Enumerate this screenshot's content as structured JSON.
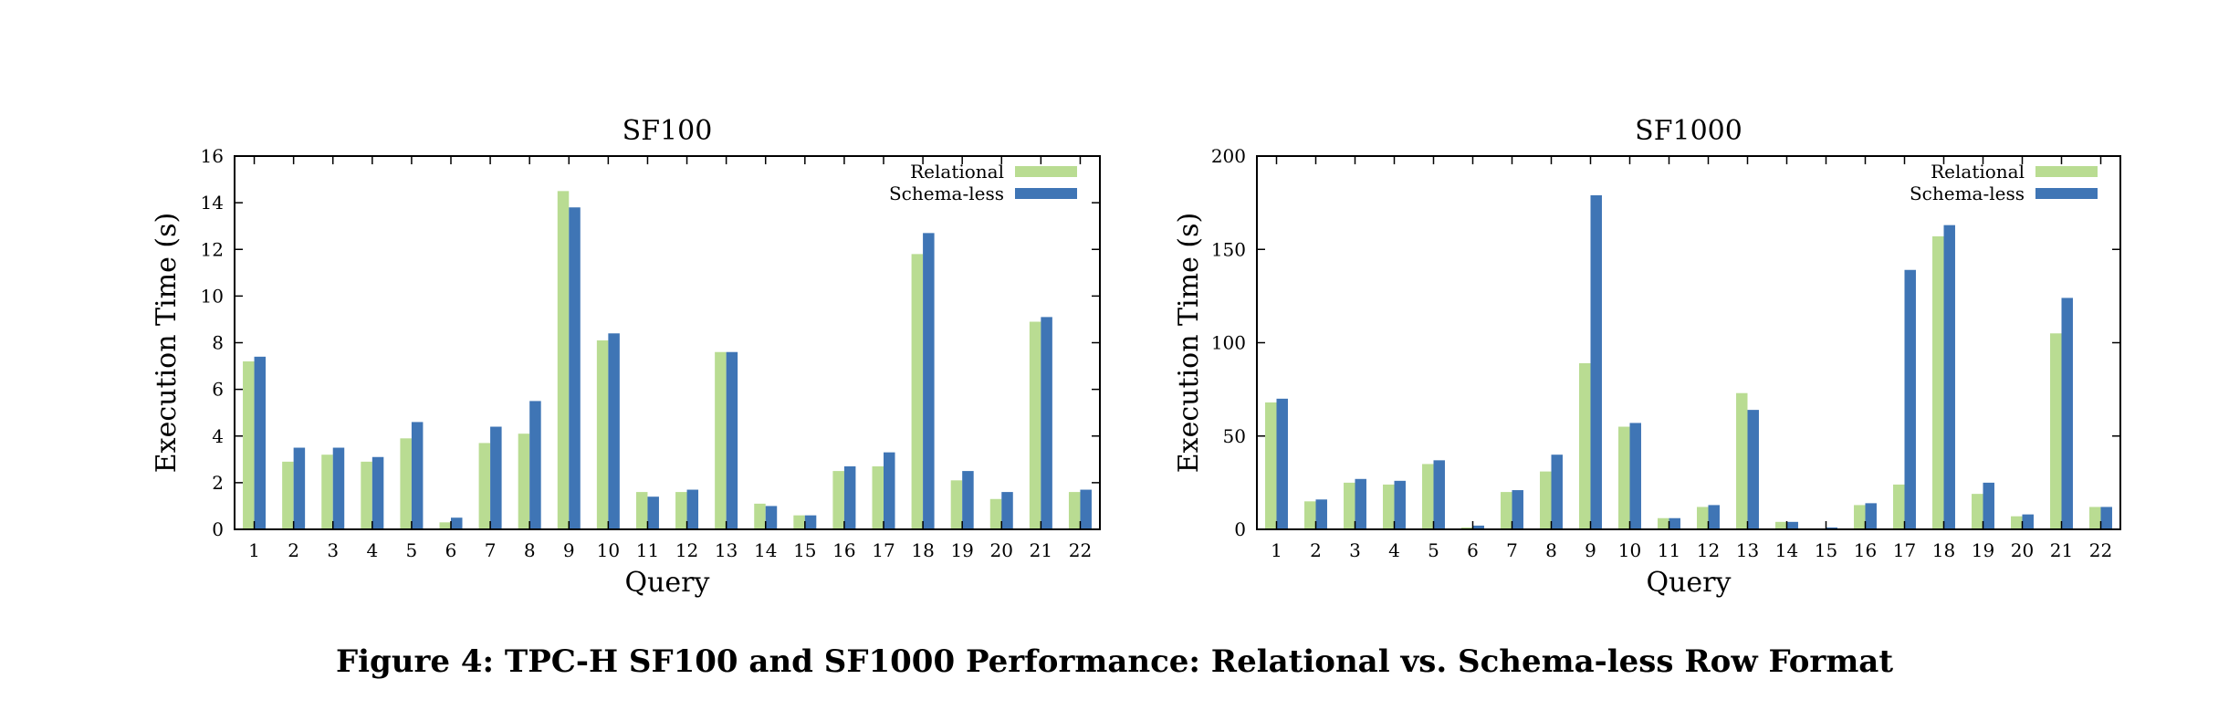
{
  "caption": "Figure 4: TPC-H SF100 and SF1000 Performance: Relational vs. Schema-less Row Format",
  "colors": {
    "relational": "#b9dc92",
    "schemaless": "#3f75b5"
  },
  "chart_data": [
    {
      "type": "bar",
      "title": "SF100",
      "xlabel": "Query",
      "ylabel": "Execution Time (s)",
      "ylim": [
        0,
        16
      ],
      "yticks": [
        0,
        2,
        4,
        6,
        8,
        10,
        12,
        14,
        16
      ],
      "legend": "top-right",
      "grid": false,
      "categories": [
        "1",
        "2",
        "3",
        "4",
        "5",
        "6",
        "7",
        "8",
        "9",
        "10",
        "11",
        "12",
        "13",
        "14",
        "15",
        "16",
        "17",
        "18",
        "19",
        "20",
        "21",
        "22"
      ],
      "series": [
        {
          "name": "Relational",
          "values": [
            7.2,
            2.9,
            3.2,
            2.9,
            3.9,
            0.3,
            3.7,
            4.1,
            14.5,
            8.1,
            1.6,
            1.6,
            7.6,
            1.1,
            0.6,
            2.5,
            2.7,
            11.8,
            2.1,
            1.3,
            8.9,
            1.6
          ]
        },
        {
          "name": "Schema-less",
          "values": [
            7.4,
            3.5,
            3.5,
            3.1,
            4.6,
            0.5,
            4.4,
            5.5,
            13.8,
            8.4,
            1.4,
            1.7,
            7.6,
            1.0,
            0.6,
            2.7,
            3.3,
            12.7,
            2.5,
            1.6,
            9.1,
            1.7
          ]
        }
      ]
    },
    {
      "type": "bar",
      "title": "SF1000",
      "xlabel": "Query",
      "ylabel": "Execution Time (s)",
      "ylim": [
        0,
        200
      ],
      "yticks": [
        0,
        50,
        100,
        150,
        200
      ],
      "legend": "top-right",
      "grid": false,
      "categories": [
        "1",
        "2",
        "3",
        "4",
        "5",
        "6",
        "7",
        "8",
        "9",
        "10",
        "11",
        "12",
        "13",
        "14",
        "15",
        "16",
        "17",
        "18",
        "19",
        "20",
        "21",
        "22"
      ],
      "series": [
        {
          "name": "Relational",
          "values": [
            68,
            15,
            25,
            24,
            35,
            1,
            20,
            31,
            89,
            55,
            6,
            12,
            73,
            4,
            0.5,
            13,
            24,
            157,
            19,
            7,
            105,
            12
          ]
        },
        {
          "name": "Schema-less",
          "values": [
            70,
            16,
            27,
            26,
            37,
            2,
            21,
            40,
            179,
            57,
            6,
            13,
            64,
            4,
            1,
            14,
            139,
            163,
            25,
            8,
            124,
            12
          ]
        }
      ]
    }
  ]
}
